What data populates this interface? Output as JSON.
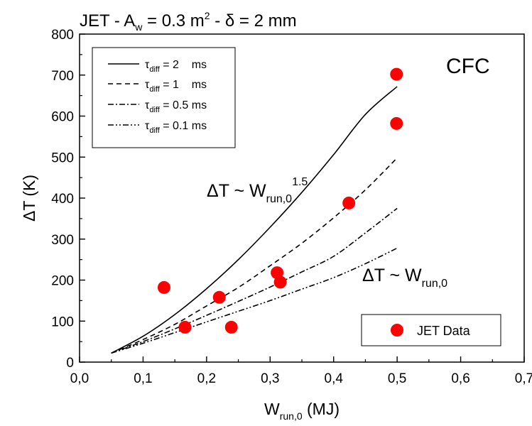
{
  "chart_data": {
    "type": "line",
    "title": {
      "main": "JET - A",
      "sub": "w",
      "rest": " = 0.3 m",
      "sup": "2",
      "tail": " - δ = 2 mm"
    },
    "xlabel": {
      "main": "W",
      "sub": "run,0",
      "rest": " (MJ)"
    },
    "ylabel": "ΔT (K)",
    "xlim": [
      0.0,
      0.7
    ],
    "ylim": [
      0,
      800
    ],
    "x_ticks": [
      "0,0",
      "0,1",
      "0,2",
      "0,3",
      "0,4",
      "0,5",
      "0,6",
      "0,7"
    ],
    "y_ticks": [
      "0",
      "100",
      "200",
      "300",
      "400",
      "500",
      "600",
      "700",
      "800"
    ],
    "series": [
      {
        "name": "τdiff = 2 ms",
        "dash": "solid",
        "x": [
          0.05,
          0.1,
          0.15,
          0.2,
          0.25,
          0.3,
          0.35,
          0.4,
          0.45,
          0.5
        ],
        "y": [
          22,
          63,
          116,
          179,
          250,
          329,
          414,
          506,
          604,
          672
        ]
      },
      {
        "name": "τdiff = 1 ms",
        "dash": "dash",
        "x": [
          0.05,
          0.1,
          0.15,
          0.2,
          0.25,
          0.3,
          0.35,
          0.4,
          0.45,
          0.5
        ],
        "y": [
          22,
          55,
          92,
          137,
          182,
          235,
          290,
          352,
          420,
          498
        ]
      },
      {
        "name": "τdiff = 0.5 ms",
        "dash": "dashdot",
        "x": [
          0.05,
          0.1,
          0.15,
          0.2,
          0.25,
          0.3,
          0.35,
          0.4,
          0.45,
          0.5
        ],
        "y": [
          22,
          50,
          81,
          114,
          148,
          183,
          220,
          258,
          315,
          375
        ]
      },
      {
        "name": "τdiff = 0.1 ms",
        "dash": "dashdotdot",
        "x": [
          0.05,
          0.1,
          0.15,
          0.2,
          0.25,
          0.3,
          0.35,
          0.4,
          0.45,
          0.5
        ],
        "y": [
          22,
          46,
          72,
          98,
          124,
          150,
          178,
          206,
          240,
          278
        ]
      },
      {
        "name": "JET Data",
        "type": "scatter",
        "color": "#ff0000",
        "points": [
          [
            0.133,
            182
          ],
          [
            0.166,
            85
          ],
          [
            0.22,
            158
          ],
          [
            0.239,
            85
          ],
          [
            0.311,
            218
          ],
          [
            0.316,
            195
          ],
          [
            0.424,
            388
          ],
          [
            0.499,
            582
          ],
          [
            0.499,
            702
          ]
        ]
      }
    ],
    "legend": {
      "placement": "top-left",
      "entries": [
        {
          "main": "τ",
          "sub": "diff",
          "rest": " = 2    ms"
        },
        {
          "main": "τ",
          "sub": "diff",
          "rest": " = 1    ms"
        },
        {
          "main": "τ",
          "sub": "diff",
          "rest": " = 0.5 ms"
        },
        {
          "main": "τ",
          "sub": "diff",
          "rest": " = 0.1 ms"
        }
      ],
      "data_legend": {
        "label": "JET Data",
        "placement": "bottom-right"
      }
    },
    "annotations": {
      "cfc": "CFC",
      "upper": {
        "main": "ΔT ~ W",
        "sub": "run,0",
        "sup": "1.5"
      },
      "lower": {
        "main": "ΔT ~ W",
        "sub": "run,0"
      }
    },
    "grid": false
  }
}
